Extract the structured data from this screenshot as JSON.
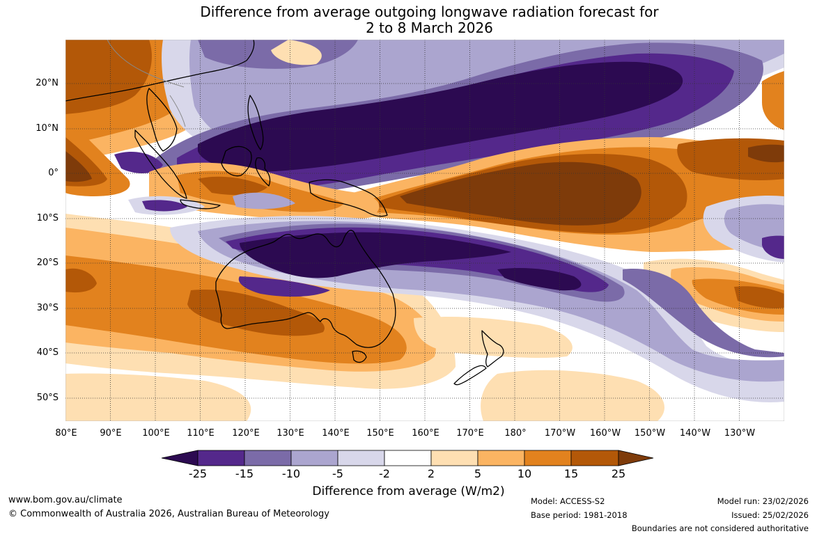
{
  "title": {
    "line1": "Difference from average outgoing longwave radiation forecast for",
    "line2": "2 to 8 March 2026"
  },
  "map": {
    "lat_labels": [
      "20°N",
      "10°N",
      "0°",
      "10°S",
      "20°S",
      "30°S",
      "40°S",
      "50°S"
    ],
    "lon_labels": [
      "80°E",
      "90°E",
      "100°E",
      "110°E",
      "120°E",
      "130°E",
      "140°E",
      "150°E",
      "160°E",
      "170°E",
      "180°",
      "170°W",
      "160°W",
      "150°W",
      "140°W",
      "130°W"
    ],
    "features": [
      "Australia",
      "New Zealand",
      "Papua New Guinea",
      "Maritime Continent"
    ]
  },
  "legend": {
    "ticks": [
      "-25",
      "-15",
      "-10",
      "-5",
      "-2",
      "2",
      "5",
      "10",
      "15",
      "25"
    ],
    "colors": [
      "#2c0a51",
      "#54288b",
      "#7b6ba8",
      "#aba5cf",
      "#d8d7ea",
      "#ffffff",
      "#fedfb2",
      "#fbb462",
      "#e2821e",
      "#b35808",
      "#7e3b0a"
    ],
    "label": "Difference from average (W/m2)"
  },
  "footer": {
    "url": "www.bom.gov.au/climate",
    "copyright": "© Commonwealth of Australia 2026, Australian Bureau of Meteorology",
    "model": "Model: ACCESS-S2",
    "base_period": "Base period: 1981-2018",
    "model_run": "Model run: 23/02/2026",
    "issued": "Issued: 25/02/2026",
    "disclaimer": "Boundaries are not considered authoritative"
  }
}
